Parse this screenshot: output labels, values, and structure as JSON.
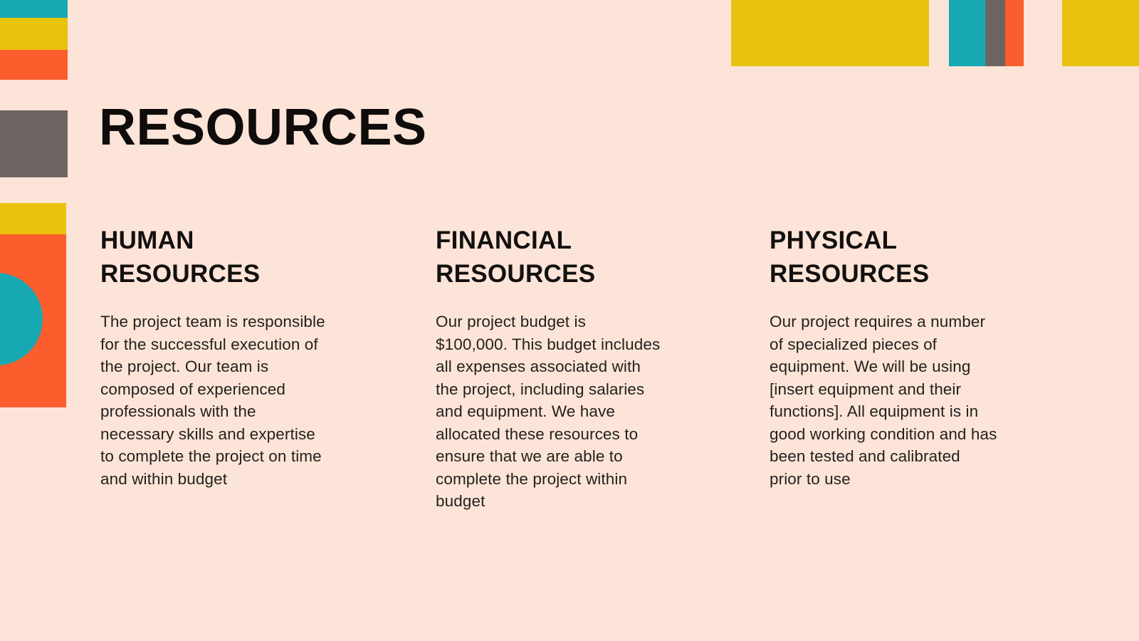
{
  "slide": {
    "title": "RESOURCES",
    "columns": [
      {
        "heading": "HUMAN\nRESOURCES",
        "body": "The project team is responsible\nfor the successful execution of\nthe project. Our team is\ncomposed of experienced\nprofessionals with the\nnecessary skills and expertise\nto complete the project on time\nand within budget"
      },
      {
        "heading": "FINANCIAL\nRESOURCES",
        "body": "Our project budget is\n$100,000. This budget includes\nall expenses associated with\nthe project, including salaries\nand equipment. We have\nallocated these resources to\nensure that we are able to\ncomplete the project within\nbudget"
      },
      {
        "heading": "PHYSICAL\nRESOURCES",
        "body": "Our project requires a number\nof specialized pieces of\nequipment. We will be using\n[insert equipment and their\nfunctions]. All equipment is in\ngood working condition and has\nbeen tested and calibrated\nprior to use"
      }
    ],
    "colors": {
      "background": "#fce5d8",
      "teal": "#17a9b2",
      "yellow": "#e9c20e",
      "orange": "#fb5d2c",
      "gray": "#6d6461",
      "text": "#1b1614"
    }
  }
}
